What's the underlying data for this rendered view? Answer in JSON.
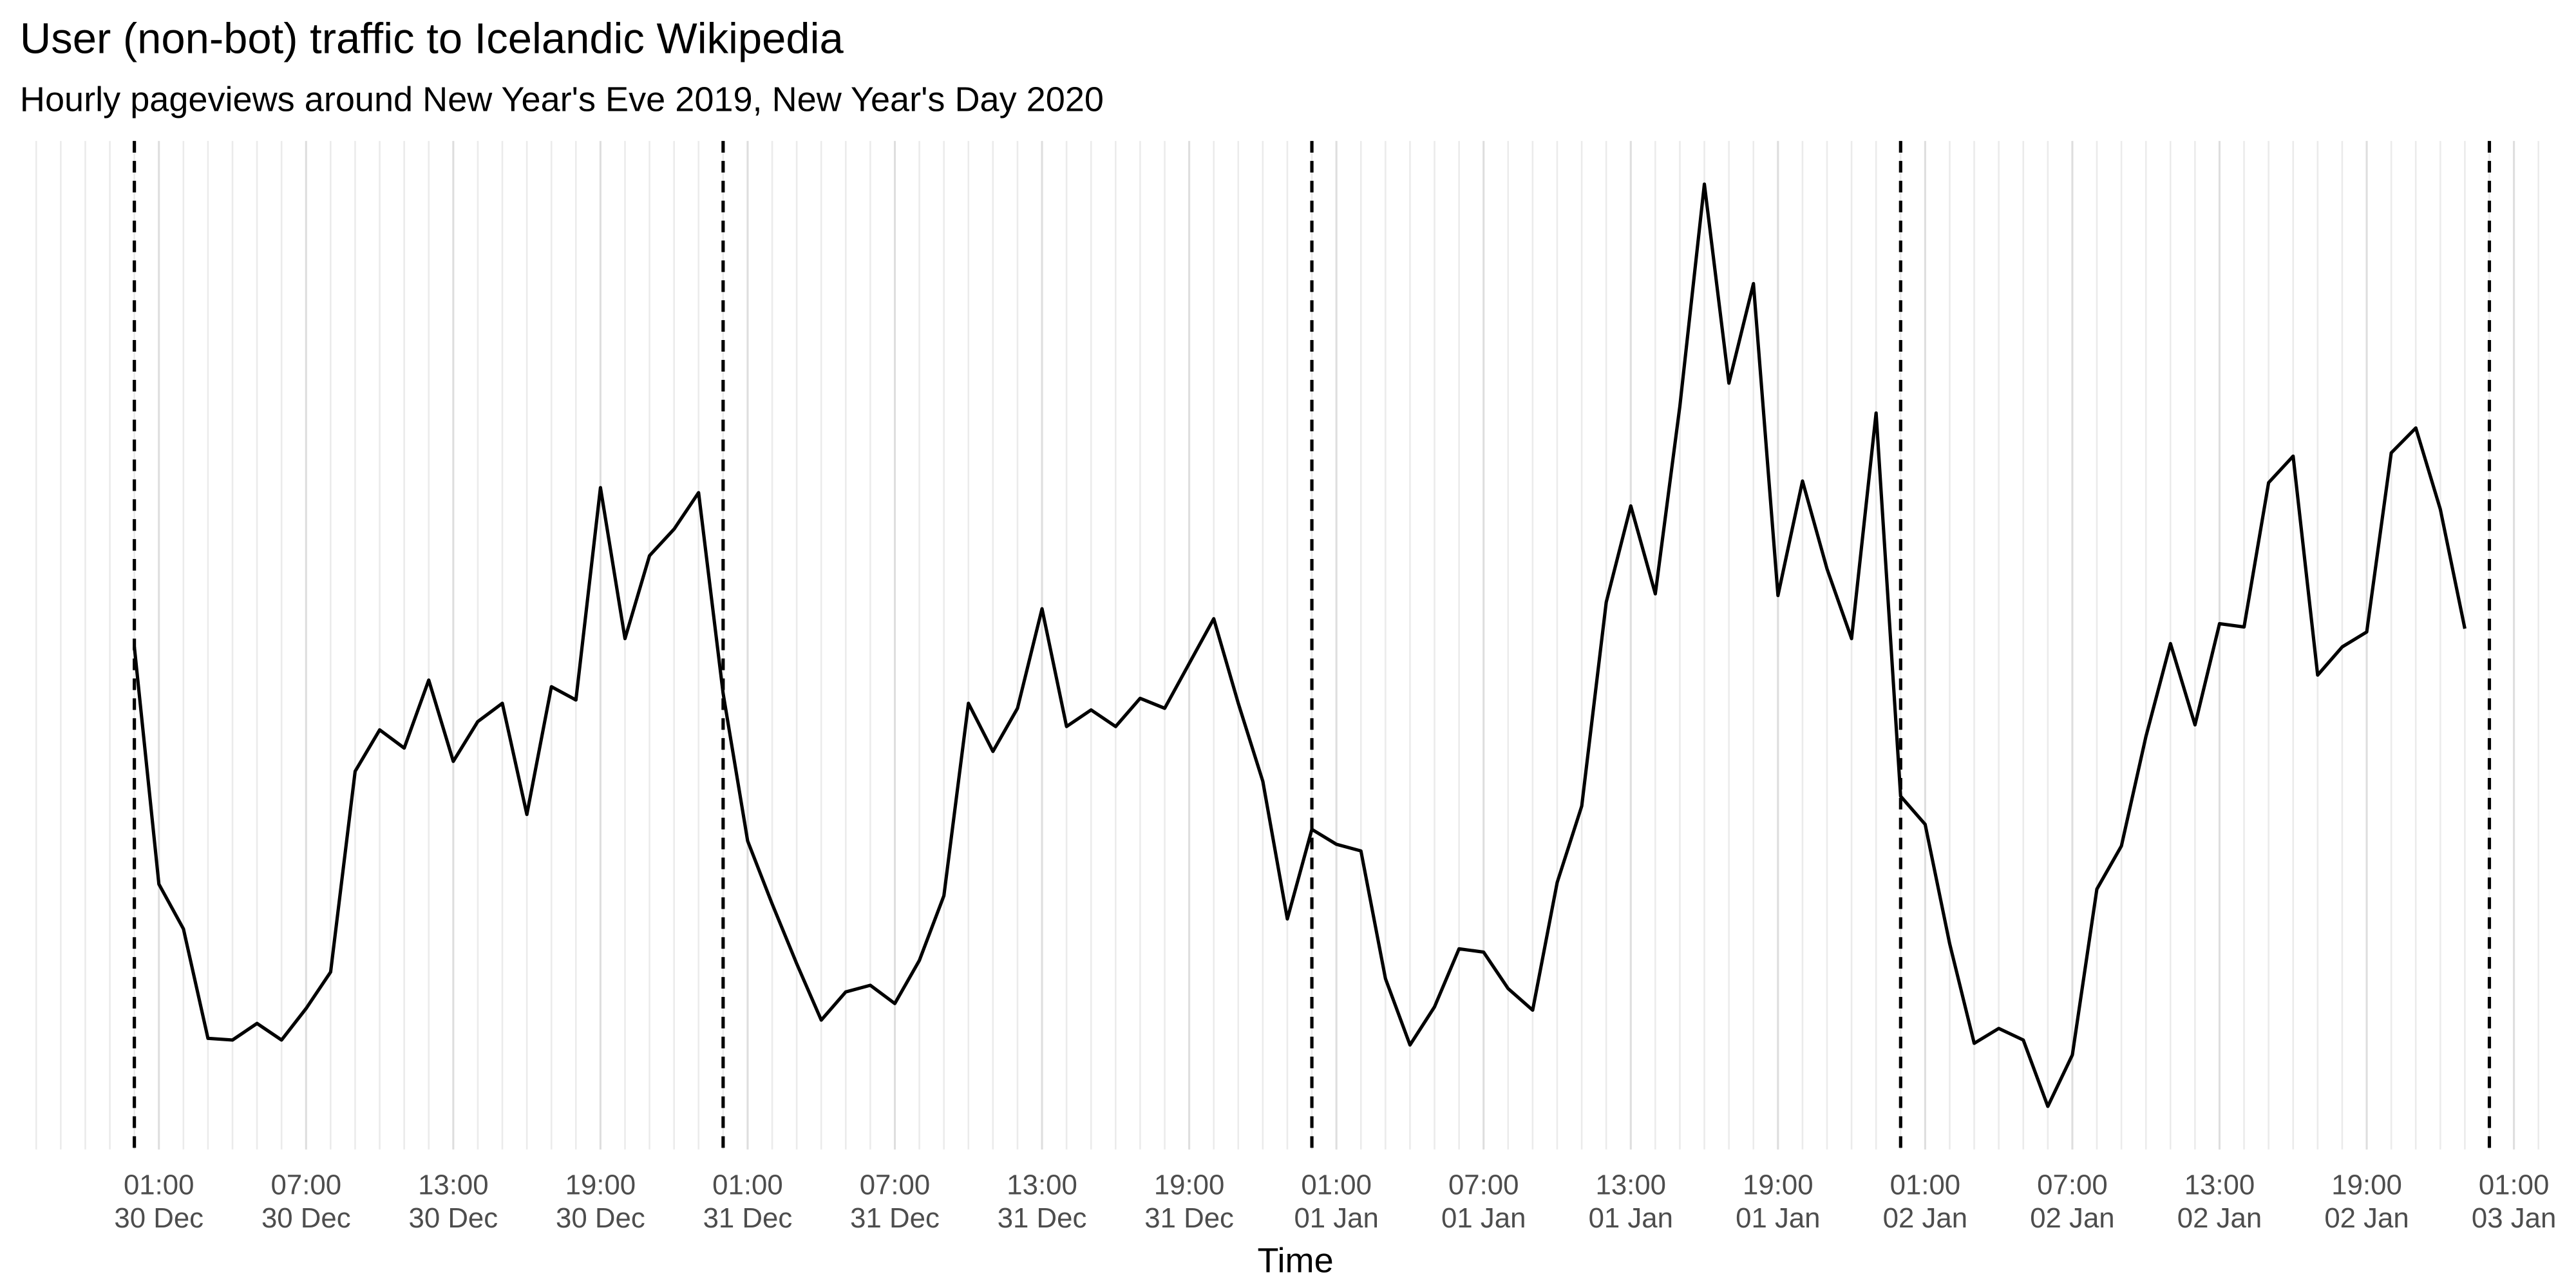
{
  "chart_data": {
    "type": "line",
    "title": "User (non-bot) traffic to Icelandic Wikipedia",
    "subtitle": "Hourly pageviews around New Year's Eve 2019, New Year's Day 2020",
    "x_label": "Time",
    "color": "#000000",
    "grid": true,
    "x": [
      0,
      1,
      2,
      3,
      4,
      5,
      6,
      7,
      8,
      9,
      10,
      11,
      12,
      13,
      14,
      15,
      16,
      17,
      18,
      19,
      20,
      21,
      22,
      23,
      24,
      25,
      26,
      27,
      28,
      29,
      30,
      31,
      32,
      33,
      34,
      35,
      36,
      37,
      38,
      39,
      40,
      41,
      42,
      43,
      44,
      45,
      46,
      47,
      48,
      49,
      50,
      51,
      52,
      53,
      54,
      55,
      56,
      57,
      58,
      59,
      60,
      61,
      62,
      63,
      64,
      65,
      66,
      67,
      68,
      69,
      70,
      71,
      72,
      73,
      74,
      75,
      76,
      77,
      78,
      79,
      80,
      81,
      82,
      83,
      84,
      85,
      86,
      87,
      88,
      89,
      90,
      91,
      92,
      93,
      94,
      95
    ],
    "values": [
      303,
      160,
      133,
      67,
      66,
      76,
      66,
      85,
      107,
      228,
      253,
      242,
      283,
      234,
      258,
      269,
      202,
      279,
      271,
      399,
      308,
      358,
      374,
      396,
      275,
      186,
      148,
      112,
      78,
      95,
      99,
      88,
      114,
      153,
      269,
      240,
      266,
      326,
      255,
      265,
      255,
      272,
      266,
      293,
      320,
      269,
      222,
      139,
      193,
      184,
      180,
      103,
      63,
      86,
      121,
      119,
      97,
      84,
      161,
      207,
      330,
      388,
      335,
      448,
      582,
      462,
      522,
      334,
      403,
      350,
      308,
      444,
      213,
      196,
      124,
      64,
      73,
      66,
      26,
      57,
      157,
      183,
      249,
      305,
      256,
      317,
      315,
      402,
      418,
      286,
      303,
      312,
      420,
      435,
      386,
      314
    ],
    "xlim": [
      -4.26,
      98.99
    ],
    "ylim": [
      0,
      608
    ],
    "vlines": [
      0,
      24,
      48,
      72,
      96
    ],
    "xticks": [
      {
        "value": 1,
        "label": [
          "01:00",
          "30 Dec"
        ]
      },
      {
        "value": 7,
        "label": [
          "07:00",
          "30 Dec"
        ]
      },
      {
        "value": 13,
        "label": [
          "13:00",
          "30 Dec"
        ]
      },
      {
        "value": 19,
        "label": [
          "19:00",
          "30 Dec"
        ]
      },
      {
        "value": 25,
        "label": [
          "01:00",
          "31 Dec"
        ]
      },
      {
        "value": 31,
        "label": [
          "07:00",
          "31 Dec"
        ]
      },
      {
        "value": 37,
        "label": [
          "13:00",
          "31 Dec"
        ]
      },
      {
        "value": 43,
        "label": [
          "19:00",
          "31 Dec"
        ]
      },
      {
        "value": 49,
        "label": [
          "01:00",
          "01 Jan"
        ]
      },
      {
        "value": 55,
        "label": [
          "07:00",
          "01 Jan"
        ]
      },
      {
        "value": 61,
        "label": [
          "13:00",
          "01 Jan"
        ]
      },
      {
        "value": 67,
        "label": [
          "19:00",
          "01 Jan"
        ]
      },
      {
        "value": 73,
        "label": [
          "01:00",
          "02 Jan"
        ]
      },
      {
        "value": 79,
        "label": [
          "07:00",
          "02 Jan"
        ]
      },
      {
        "value": 85,
        "label": [
          "13:00",
          "02 Jan"
        ]
      },
      {
        "value": 91,
        "label": [
          "19:00",
          "02 Jan"
        ]
      },
      {
        "value": 97,
        "label": [
          "01:00",
          "03 Jan"
        ]
      }
    ]
  }
}
